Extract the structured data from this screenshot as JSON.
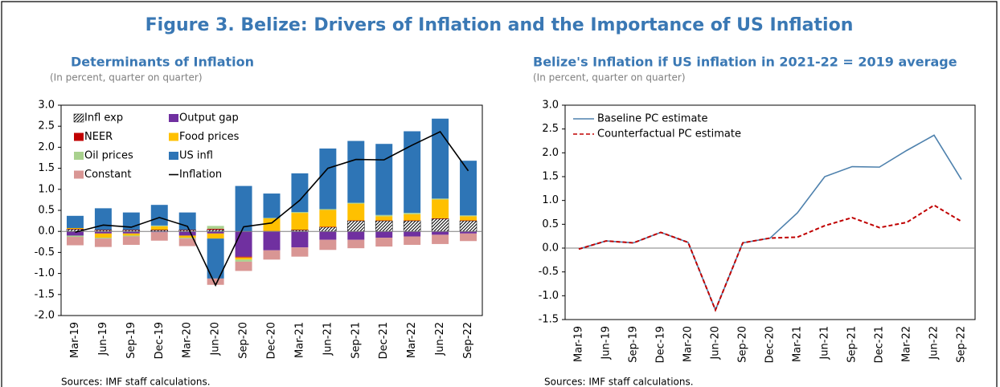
{
  "title": "Figure 3. Belize: Drivers of Inflation and the Importance of US Inflation",
  "chart_data": [
    {
      "type": "bar",
      "title": "Determinants of Inflation",
      "subtitle": "(In percent, quarter on quarter)",
      "note": "Sources: IMF staff calculations.",
      "categories": [
        "Mar-19",
        "Jun-19",
        "Sep-19",
        "Dec-19",
        "Mar-20",
        "Jun-20",
        "Sep-20",
        "Dec-20",
        "Mar-21",
        "Jun-21",
        "Sep-21",
        "Dec-21",
        "Mar-22",
        "Jun-22",
        "Sep-22"
      ],
      "ylim": [
        -2,
        3
      ],
      "yticks": [
        {
          "value": -2,
          "label": "-2.0"
        },
        -1.5,
        {
          "value": -1,
          "label": "-1.0"
        },
        -0.5,
        {
          "value": 0,
          "label": "0.0"
        },
        0.5,
        {
          "value": 1,
          "label": "1.0"
        },
        1.5,
        {
          "value": 2,
          "label": "2.0"
        },
        2.5,
        {
          "value": 3,
          "label": "3.0"
        }
      ],
      "series": [
        {
          "name": "Infl exp",
          "color": "#ffffff",
          "hatch": true,
          "values": [
            0.05,
            0.03,
            0.03,
            0.03,
            0.03,
            0.04,
            0.0,
            0.0,
            0.03,
            0.1,
            0.25,
            0.25,
            0.25,
            0.3,
            0.25
          ]
        },
        {
          "name": "Output gap",
          "color": "#7030a0",
          "values": [
            -0.1,
            -0.05,
            -0.05,
            -0.02,
            -0.1,
            -0.05,
            -0.6,
            -0.45,
            -0.38,
            -0.2,
            -0.2,
            -0.15,
            -0.12,
            -0.08,
            -0.05
          ]
        },
        {
          "name": "NEER",
          "color": "#c00000",
          "values": [
            0.01,
            0.01,
            0.01,
            0.01,
            0.01,
            0.02,
            -0.02,
            0.01,
            0.01,
            0.01,
            0.01,
            0.01,
            0.01,
            0.01,
            0.01
          ]
        },
        {
          "name": "Food prices",
          "color": "#ffc000",
          "values": [
            0.02,
            -0.1,
            -0.05,
            0.08,
            -0.05,
            -0.12,
            -0.05,
            0.3,
            0.4,
            0.4,
            0.4,
            0.1,
            0.15,
            0.45,
            0.1
          ]
        },
        {
          "name": "Oil prices",
          "color": "#a9d18e",
          "values": [
            -0.03,
            -0.02,
            -0.02,
            0.02,
            -0.02,
            0.07,
            -0.05,
            0.01,
            0.02,
            0.02,
            0.02,
            0.03,
            0.03,
            0.02,
            0.02
          ]
        },
        {
          "name": "US infl",
          "color": "#2e75b6",
          "values": [
            0.29,
            0.51,
            0.41,
            0.49,
            0.41,
            -0.95,
            1.08,
            0.58,
            0.92,
            1.44,
            1.47,
            1.69,
            1.94,
            1.9,
            1.3
          ]
        },
        {
          "name": "Constant",
          "color": "#d99694",
          "values": [
            -0.2,
            -0.2,
            -0.2,
            -0.2,
            -0.18,
            -0.15,
            -0.22,
            -0.22,
            -0.22,
            -0.24,
            -0.2,
            -0.21,
            -0.2,
            -0.22,
            -0.18
          ]
        },
        {
          "name": "Inflation",
          "type": "line",
          "color": "#000000",
          "values": [
            -0.02,
            0.15,
            0.1,
            0.33,
            0.12,
            -1.28,
            0.11,
            0.2,
            0.74,
            1.5,
            1.71,
            1.7,
            2.05,
            2.37,
            1.44
          ]
        }
      ]
    },
    {
      "type": "line",
      "title": "Belize's Inflation if US inflation in 2021-22 = 2019 average",
      "subtitle": "(In percent, quarter on quarter)",
      "note": "Sources: IMF staff calculations.",
      "categories": [
        "Mar-19",
        "Jun-19",
        "Sep-19",
        "Dec-19",
        "Mar-20",
        "Jun-20",
        "Sep-20",
        "Dec-20",
        "Mar-21",
        "Jun-21",
        "Sep-21",
        "Dec-21",
        "Mar-22",
        "Jun-22",
        "Sep-22"
      ],
      "ylim": [
        -1.5,
        3
      ],
      "yticks": [
        -1.5,
        {
          "value": -1,
          "label": "-1.0"
        },
        -0.5,
        {
          "value": 0,
          "label": "0.0"
        },
        0.5,
        {
          "value": 1,
          "label": "1.0"
        },
        1.5,
        {
          "value": 2,
          "label": "2.0"
        },
        2.5,
        {
          "value": 3,
          "label": "3.0"
        }
      ],
      "series": [
        {
          "name": "Baseline PC estimate",
          "color": "#4e81ad",
          "values": [
            -0.02,
            0.15,
            0.11,
            0.33,
            0.12,
            -1.3,
            0.11,
            0.21,
            0.74,
            1.5,
            1.71,
            1.7,
            2.05,
            2.37,
            1.44
          ]
        },
        {
          "name": "Counterfactual PC estimate",
          "color": "#c00000",
          "dash": true,
          "values": [
            -0.02,
            0.15,
            0.11,
            0.33,
            0.12,
            -1.3,
            0.11,
            0.21,
            0.23,
            0.47,
            0.64,
            0.43,
            0.54,
            0.9,
            0.56
          ]
        }
      ]
    }
  ]
}
